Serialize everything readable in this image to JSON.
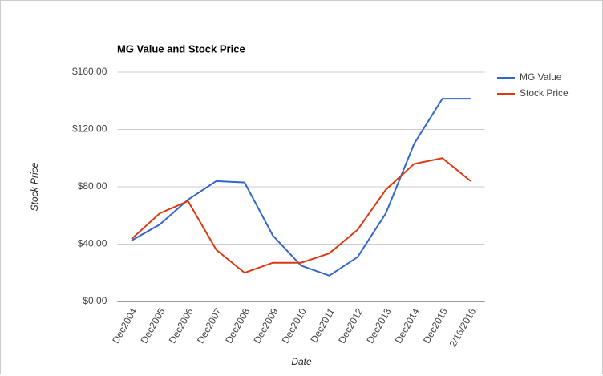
{
  "chart_data": {
    "type": "line",
    "title": "MG Value and Stock Price",
    "x_label": "Date",
    "y_label": "Stock Price",
    "categories": [
      "Dec2004",
      "Dec2005",
      "Dec2006",
      "Dec2007",
      "Dec2008",
      "Dec2009",
      "Dec2010",
      "Dec2011",
      "Dec2012",
      "Dec2013",
      "Dec2014",
      "Dec2015",
      "2/16/2016"
    ],
    "series": [
      {
        "name": "MG Value",
        "color": "#3366cc",
        "values": [
          42.5,
          53.7,
          71,
          84,
          83,
          46,
          25,
          18,
          31,
          61.5,
          110,
          141.5,
          141.5
        ]
      },
      {
        "name": "Stock Price",
        "color": "#dc3912",
        "values": [
          43.6,
          61.5,
          70,
          36,
          20,
          27,
          27,
          33.6,
          50,
          78,
          96,
          100,
          84
        ]
      }
    ],
    "ylim": [
      0,
      160
    ],
    "yticks": [
      {
        "value": 0,
        "label": "$0.00"
      },
      {
        "value": 40,
        "label": "$40.00"
      },
      {
        "value": 80,
        "label": "$80.00"
      },
      {
        "value": 120,
        "label": "$120.00"
      },
      {
        "value": 160,
        "label": "$160.00"
      }
    ],
    "grid": true,
    "legend": "right"
  }
}
